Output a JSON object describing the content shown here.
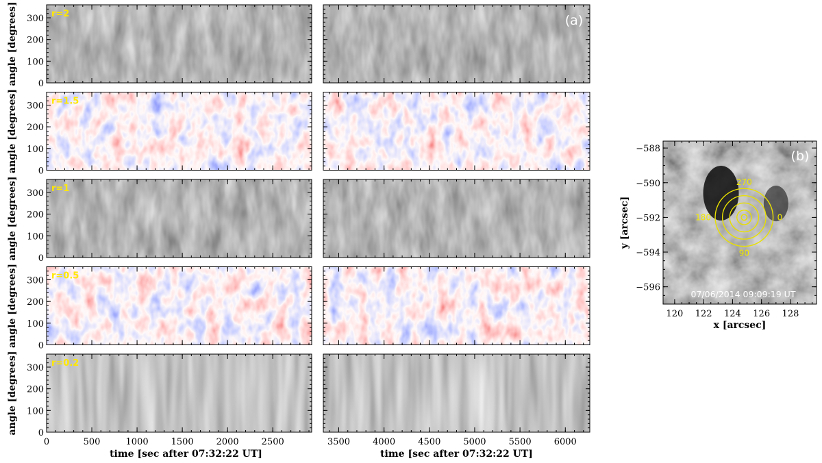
{
  "chart_data": [
    {
      "type": "heatmap",
      "panel_tag": "(a)",
      "xlabel": "time [sec after 07:32:22 UT]",
      "ylabel": "angle [degrees]",
      "columns": [
        {
          "xlim": [
            0,
            2930
          ],
          "xticks": [
            0,
            500,
            1000,
            1500,
            2000,
            2500
          ]
        },
        {
          "xlim": [
            3330,
            6270
          ],
          "xticks": [
            3500,
            4000,
            4500,
            5000,
            5500,
            6000
          ]
        }
      ],
      "ylim": [
        0,
        360
      ],
      "yticks": [
        0,
        100,
        200,
        300
      ],
      "rows": [
        {
          "label": "r=2",
          "colormap": "gray"
        },
        {
          "label": "r=1.5",
          "colormap": "red-white-blue"
        },
        {
          "label": "r=1",
          "colormap": "gray"
        },
        {
          "label": "r=0.5",
          "colormap": "red-white-blue"
        },
        {
          "label": "r=0.2",
          "colormap": "gray"
        }
      ],
      "label_color": "#ffe800"
    },
    {
      "type": "heatmap",
      "panel_tag": "(b)",
      "xlabel": "x [arcsec]",
      "ylabel": "y [arcsec]",
      "xlim": [
        119.2,
        129.8
      ],
      "ylim": [
        -597,
        -587.6
      ],
      "xticks": [
        120,
        122,
        124,
        126,
        128
      ],
      "yticks": [
        -588,
        -590,
        -592,
        -594,
        -596
      ],
      "xtick_labels": [
        "120",
        "122",
        "124",
        "126",
        "128"
      ],
      "ytick_labels": [
        "−588",
        "−590",
        "−592",
        "−594",
        "−596"
      ],
      "circle_center": [
        124.8,
        -592.0
      ],
      "circle_radii": [
        0.2,
        0.5,
        1.0,
        1.5,
        2.0
      ],
      "angle_labels": [
        "0",
        "90",
        "180",
        "270"
      ],
      "timestamp": "07/06/2014 09:09:19 UT",
      "circle_color": "#e8e000"
    }
  ]
}
